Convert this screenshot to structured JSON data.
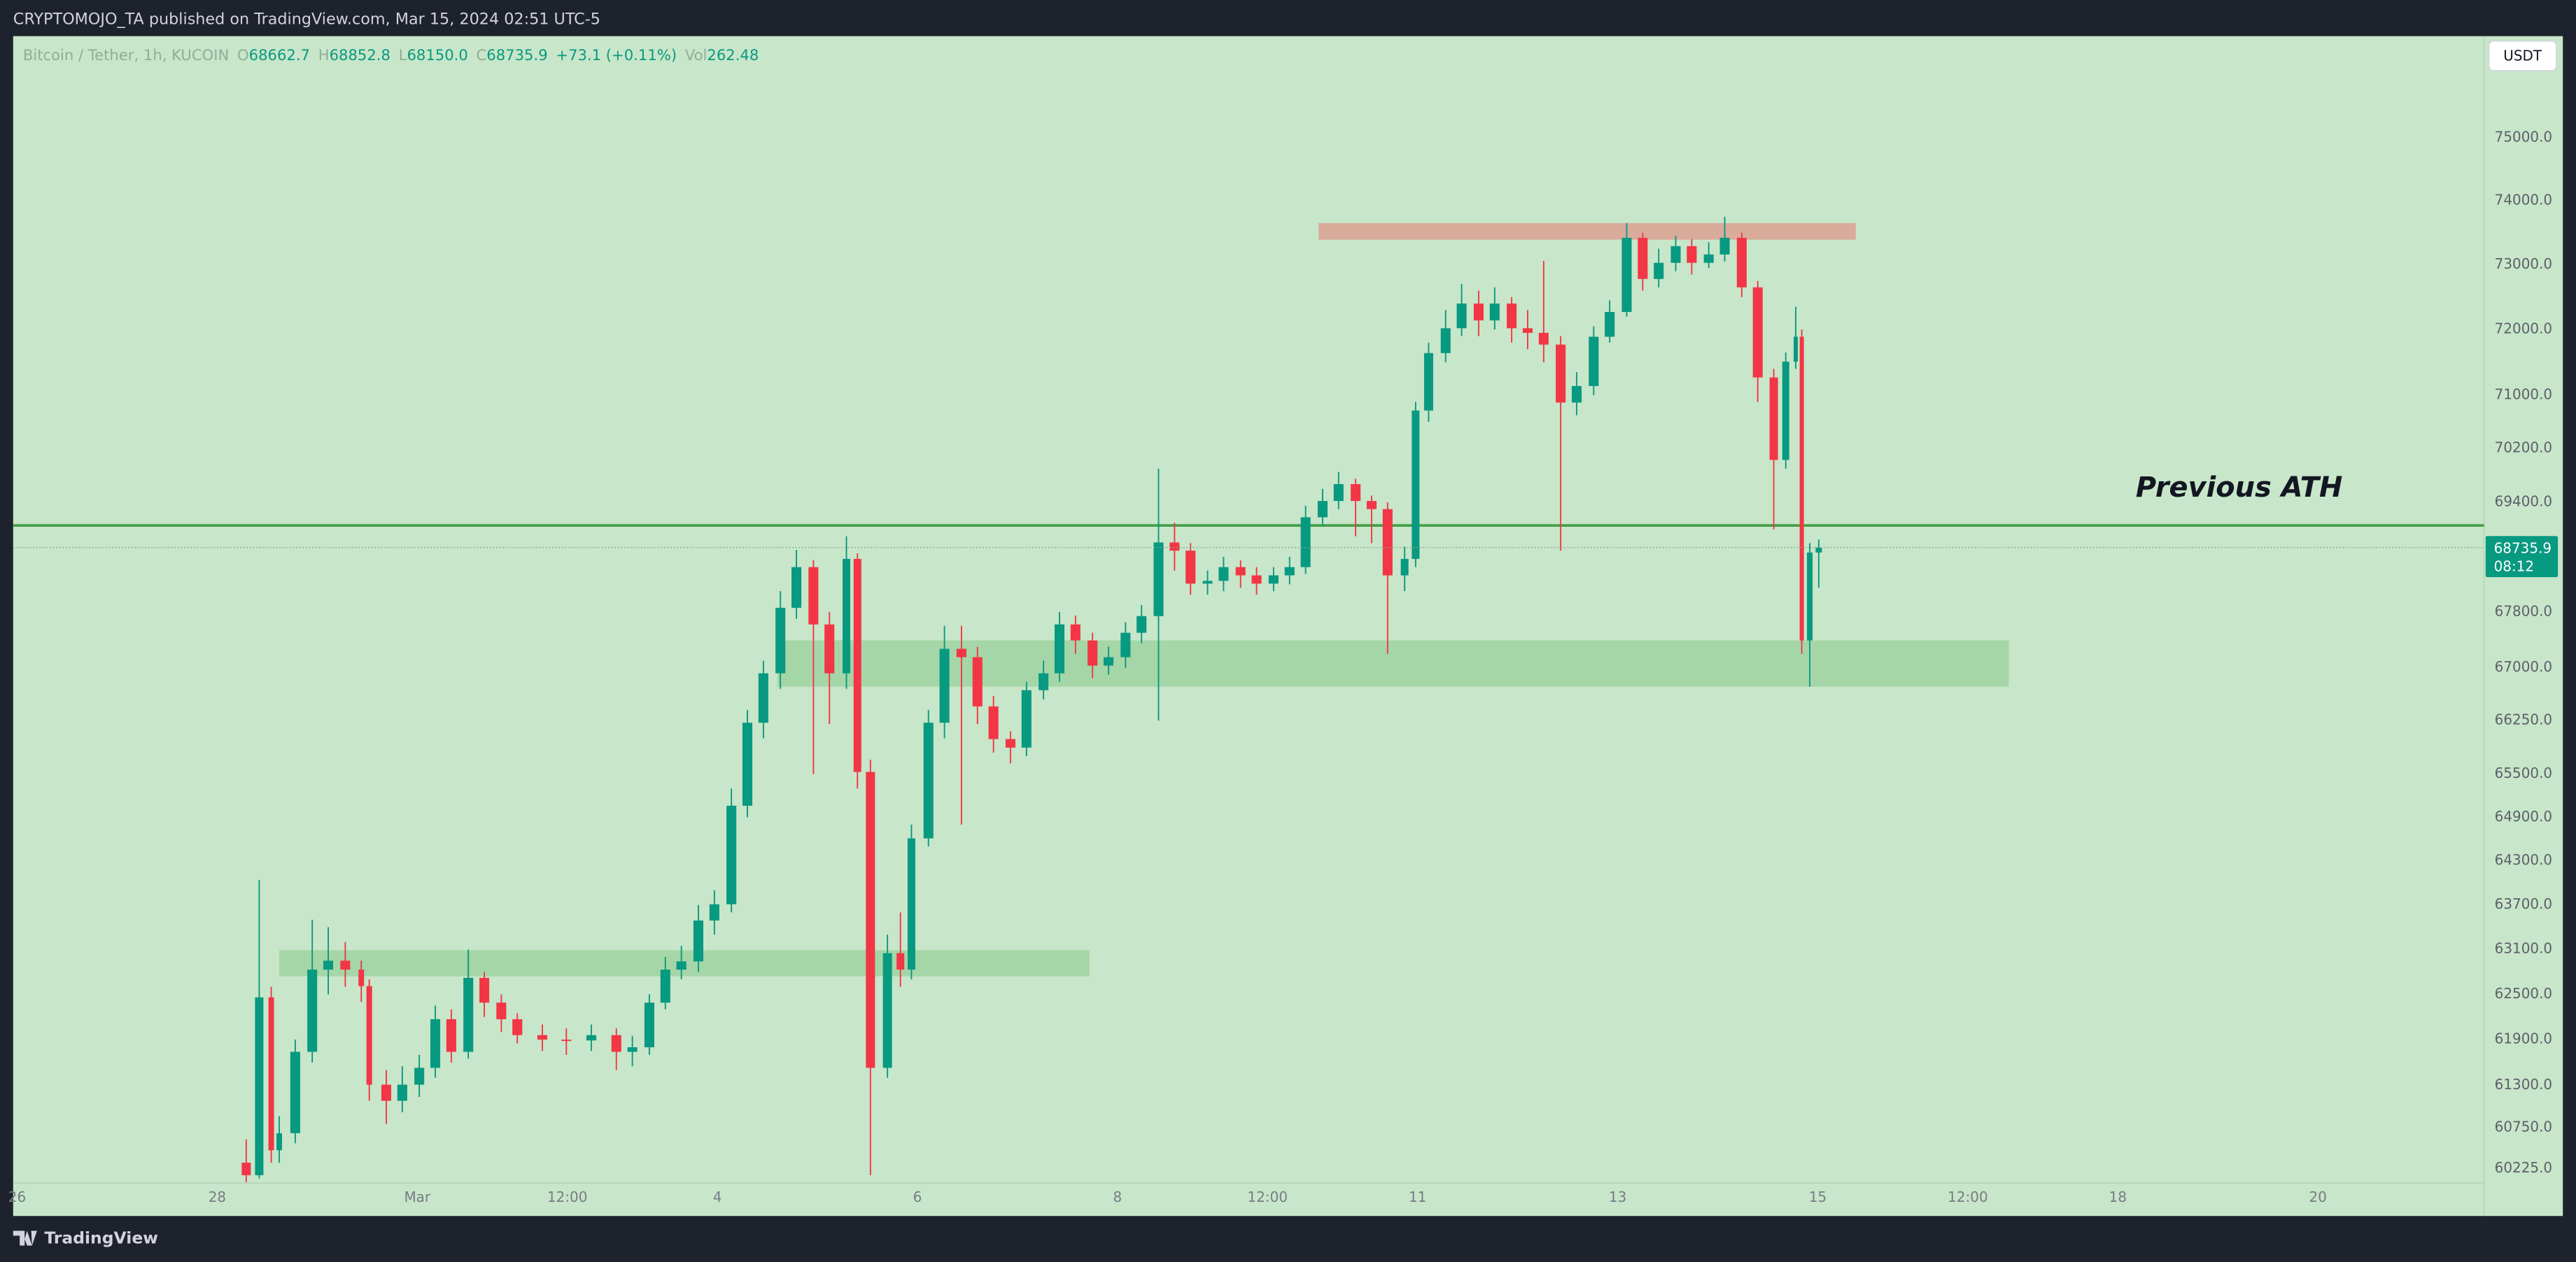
{
  "header": {
    "byline": "CRYPTOMOJO_TA published on TradingView.com, Mar 15, 2024 02:51 UTC-5",
    "currency_button": "USDT"
  },
  "footer": {
    "brand": "TradingView"
  },
  "chart_data": {
    "type": "candlestick",
    "legend": {
      "symbol": "Bitcoin / Tether, 1h, KUCOIN",
      "fields": [
        {
          "label": "O",
          "value": "68662.7"
        },
        {
          "label": "H",
          "value": "68852.8"
        },
        {
          "label": "L",
          "value": "68150.0"
        },
        {
          "label": "C",
          "value": "68735.9"
        }
      ],
      "change": "+73.1 (+0.11%)",
      "volume": {
        "label": "Vol",
        "value": "262.48"
      }
    },
    "log_scale": true,
    "grid": false,
    "up_color": "#089981",
    "down_color": "#f23645",
    "xlim": [
      -3.04,
      21.66
    ],
    "ylim": [
      59620,
      76640
    ],
    "xticks": [
      {
        "value": -3,
        "label": "26"
      },
      {
        "value": -1,
        "label": "28"
      },
      {
        "value": 1,
        "label": "Mar"
      },
      {
        "value": 2.5,
        "label": "12:00"
      },
      4,
      6,
      8,
      {
        "value": 9.5,
        "label": "12:00"
      },
      11,
      13,
      15,
      {
        "value": 16.5,
        "label": "12:00"
      },
      18,
      20
    ],
    "yticks": [
      {
        "value": 60225,
        "label": "60225.0"
      },
      {
        "value": 60750,
        "label": "60750.0"
      },
      {
        "value": 61300,
        "label": "61300.0"
      },
      {
        "value": 61900,
        "label": "61900.0"
      },
      {
        "value": 62500,
        "label": "62500.0"
      },
      {
        "value": 63100,
        "label": "63100.0"
      },
      {
        "value": 63700,
        "label": "63700.0"
      },
      {
        "value": 64300,
        "label": "64300.0"
      },
      {
        "value": 64900,
        "label": "64900.0"
      },
      {
        "value": 65500,
        "label": "65500.0"
      },
      {
        "value": 66250,
        "label": "66250.0"
      },
      {
        "value": 67000,
        "label": "67000.0"
      },
      {
        "value": 67800,
        "label": "67800.0"
      },
      {
        "value": 69400,
        "label": "69400.0"
      },
      {
        "value": 70200,
        "label": "70200.0"
      },
      {
        "value": 71000,
        "label": "71000.0"
      },
      {
        "value": 72000,
        "label": "72000.0"
      },
      {
        "value": 73000,
        "label": "73000.0"
      },
      {
        "value": 74000,
        "label": "74000.0"
      },
      {
        "value": 75000,
        "label": "75000.0"
      }
    ],
    "x": [
      -0.71,
      -0.58,
      -0.46,
      -0.38,
      -0.22,
      -0.05,
      0.11,
      0.28,
      0.44,
      0.52,
      0.69,
      0.85,
      1.02,
      1.18,
      1.34,
      1.51,
      1.67,
      1.84,
      2.0,
      2.25,
      2.49,
      2.74,
      2.99,
      3.15,
      3.32,
      3.48,
      3.64,
      3.81,
      3.97,
      4.14,
      4.3,
      4.46,
      4.63,
      4.79,
      4.96,
      5.12,
      5.29,
      5.4,
      5.53,
      5.7,
      5.83,
      5.94,
      6.11,
      6.27,
      6.44,
      6.6,
      6.76,
      6.93,
      7.09,
      7.26,
      7.42,
      7.58,
      7.75,
      7.91,
      8.08,
      8.24,
      8.41,
      8.57,
      8.73,
      8.9,
      9.06,
      9.23,
      9.39,
      9.56,
      9.72,
      9.88,
      10.05,
      10.21,
      10.38,
      10.54,
      10.7,
      10.87,
      10.98,
      11.11,
      11.28,
      11.44,
      11.61,
      11.77,
      11.94,
      12.1,
      12.26,
      12.43,
      12.59,
      12.76,
      12.92,
      13.09,
      13.25,
      13.41,
      13.58,
      13.74,
      13.91,
      14.07,
      14.24,
      14.4,
      14.56,
      14.68,
      14.78,
      14.84,
      14.92,
      15.01
    ],
    "open": [
      60300,
      60140,
      62460,
      60460,
      60680,
      61740,
      62830,
      62950,
      62830,
      62610,
      61310,
      61100,
      61310,
      61530,
      62170,
      61740,
      62720,
      62390,
      62170,
      61960,
      61900,
      61890,
      61960,
      61740,
      61800,
      62390,
      62830,
      62940,
      63490,
      63710,
      65060,
      66220,
      66920,
      67860,
      68450,
      67620,
      66920,
      68570,
      65530,
      61530,
      63050,
      62830,
      64610,
      66220,
      67270,
      67150,
      66450,
      65990,
      65870,
      66680,
      66920,
      67620,
      67390,
      67030,
      67150,
      67500,
      67740,
      68810,
      68690,
      68210,
      68250,
      68450,
      68330,
      68210,
      68330,
      68450,
      69180,
      69420,
      69670,
      69420,
      69300,
      68330,
      68570,
      70770,
      71640,
      72020,
      72400,
      72140,
      72400,
      72020,
      71950,
      71770,
      70890,
      71140,
      71890,
      72270,
      73420,
      72780,
      73030,
      73290,
      73030,
      73160,
      73420,
      72650,
      71270,
      70030,
      71510,
      71890,
      67390,
      68662.7
    ],
    "high": [
      60600,
      64040,
      62600,
      60900,
      61900,
      63500,
      63400,
      63200,
      62950,
      62700,
      61500,
      61550,
      61700,
      62350,
      62300,
      63100,
      62800,
      62500,
      62250,
      62100,
      62050,
      62100,
      62050,
      61950,
      62500,
      63000,
      63150,
      63700,
      63900,
      65300,
      66400,
      67100,
      68100,
      68700,
      68550,
      67800,
      68900,
      68650,
      65700,
      63300,
      63600,
      64800,
      66400,
      67600,
      67600,
      67300,
      66600,
      66100,
      66800,
      67100,
      67800,
      67750,
      67500,
      67300,
      67650,
      67900,
      69900,
      69100,
      68800,
      68400,
      68600,
      68550,
      68450,
      68450,
      68600,
      69350,
      69600,
      69850,
      69750,
      69500,
      69400,
      68750,
      70900,
      71800,
      72300,
      72700,
      72600,
      72650,
      72500,
      72300,
      73060,
      71900,
      71350,
      72050,
      72450,
      73650,
      73500,
      73250,
      73450,
      73400,
      73350,
      73750,
      73500,
      72750,
      71400,
      71650,
      72350,
      72000,
      68800,
      68852.8
    ],
    "low": [
      60050,
      60100,
      60300,
      60300,
      60550,
      61600,
      62500,
      62600,
      62400,
      61100,
      60800,
      60950,
      61150,
      61400,
      61600,
      61650,
      62200,
      62000,
      61850,
      61750,
      61700,
      61750,
      61500,
      61550,
      61700,
      62300,
      62700,
      62800,
      63300,
      63600,
      64900,
      66000,
      66700,
      67700,
      65500,
      66200,
      66700,
      65300,
      60140,
      61400,
      62600,
      62700,
      64500,
      66000,
      64800,
      66200,
      65800,
      65650,
      65750,
      66550,
      66800,
      67200,
      66850,
      66900,
      67000,
      67350,
      66250,
      68400,
      68050,
      68050,
      68100,
      68150,
      68050,
      68100,
      68200,
      68350,
      69050,
      69300,
      68900,
      68800,
      67200,
      68100,
      68450,
      70600,
      71500,
      71900,
      71900,
      72000,
      71800,
      71700,
      71500,
      68690,
      70700,
      71000,
      71800,
      72200,
      72600,
      72650,
      72900,
      72850,
      72950,
      73050,
      72500,
      70900,
      69000,
      69900,
      71400,
      67200,
      66730,
      68150.0
    ],
    "close": [
      60140,
      62460,
      60460,
      60680,
      61740,
      62830,
      62950,
      62830,
      62610,
      61310,
      61100,
      61310,
      61530,
      62170,
      61740,
      62720,
      62390,
      62170,
      61960,
      61900,
      61890,
      61960,
      61740,
      61800,
      62390,
      62830,
      62940,
      63490,
      63710,
      65060,
      66220,
      66920,
      67860,
      68450,
      67620,
      66920,
      68570,
      65530,
      61530,
      63050,
      62830,
      64610,
      66220,
      67270,
      67150,
      66450,
      65990,
      65870,
      66680,
      66920,
      67620,
      67390,
      67030,
      67150,
      67500,
      67740,
      68810,
      68690,
      68210,
      68250,
      68450,
      68330,
      68210,
      68330,
      68450,
      69180,
      69420,
      69670,
      69420,
      69300,
      68330,
      68570,
      70770,
      71640,
      72020,
      72400,
      72140,
      72400,
      72020,
      71950,
      71770,
      70890,
      71140,
      71890,
      72270,
      73420,
      72780,
      73030,
      73290,
      73030,
      73160,
      73420,
      72650,
      71270,
      70030,
      71510,
      71890,
      67390,
      68662.7,
      68735.9
    ],
    "countdown": "08:12",
    "last_color": "#089981",
    "zones": [
      {
        "start": 10.01,
        "end": 15.38,
        "low": 73390,
        "high": 73650,
        "color": "#d9ab9b"
      },
      {
        "start": 4.6,
        "end": 16.91,
        "low": 66730,
        "high": 67390,
        "color": "#a5d6a7"
      },
      {
        "start": -0.38,
        "end": 7.72,
        "low": 62740,
        "high": 63090,
        "color": "#a5d6a7"
      }
    ],
    "lines": [
      {
        "value": 69060,
        "label": "Previous ATH",
        "color": "#43a047"
      }
    ]
  }
}
